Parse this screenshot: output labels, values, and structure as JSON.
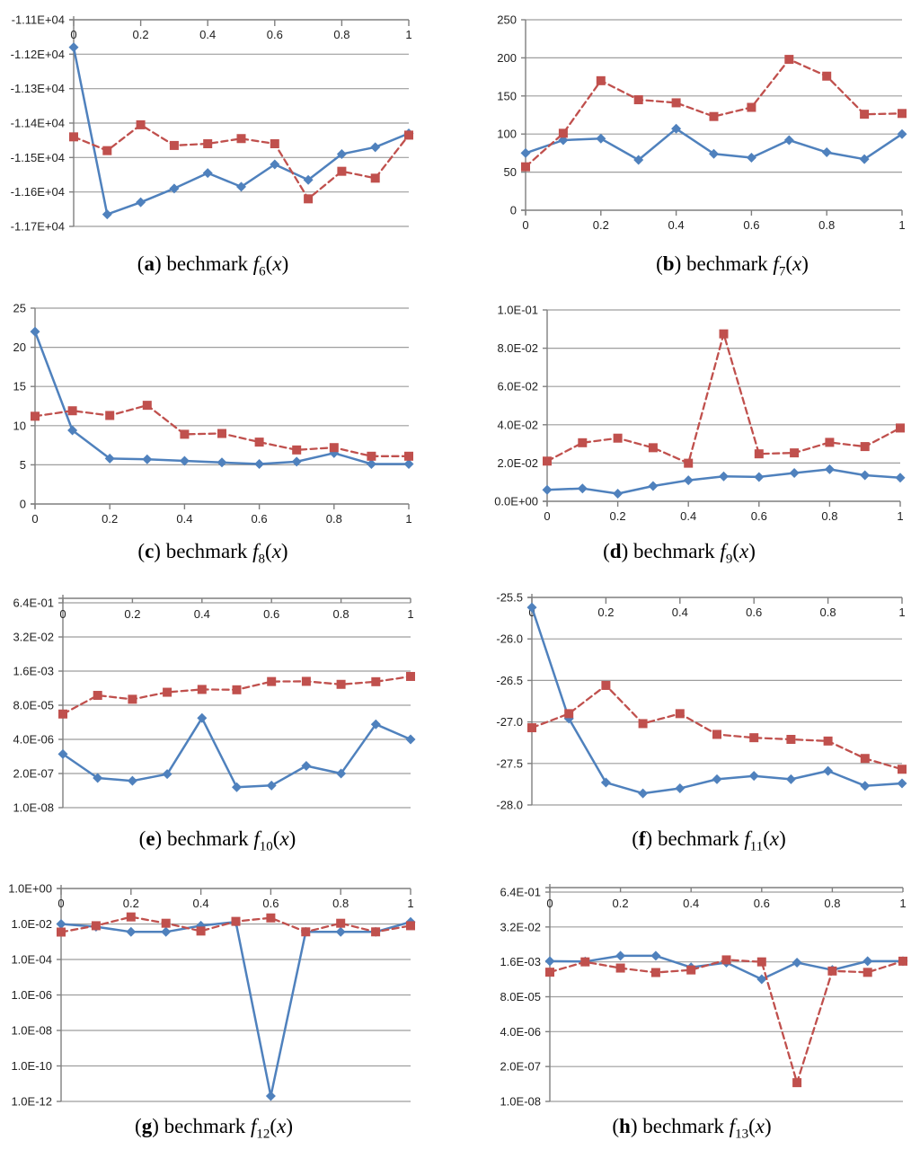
{
  "styles": {
    "blue": "#4F81BD",
    "red": "#C0504D",
    "grid": "#9E9E9E",
    "axis": "#7F7F7F",
    "label_color": "#212121"
  },
  "chart_data": [
    {
      "id": "a",
      "type": "line",
      "caption": {
        "pre": "(",
        "letter": "a",
        "post": ") bechmark ",
        "func": "f",
        "sub": "6",
        "argpre": "(",
        "arg": "x",
        "argpost": ")"
      },
      "x_axis": {
        "position": "top",
        "style": "single",
        "tick_labels": [
          "0",
          "0.2",
          "0.4",
          "0.6",
          "0.8",
          "1"
        ],
        "range": [
          0,
          1
        ]
      },
      "y_axis": {
        "scale": "linear",
        "ticks": [
          {
            "label": "-1.11E+04",
            "v": -11100
          },
          {
            "label": "-1.12E+04",
            "v": -11200
          },
          {
            "label": "-1.13E+04",
            "v": -11300
          },
          {
            "label": "-1.14E+04",
            "v": -11400
          },
          {
            "label": "-1.15E+04",
            "v": -11500
          },
          {
            "label": "-1.16E+04",
            "v": -11600
          },
          {
            "label": "-1.17E+04",
            "v": -11700
          }
        ]
      },
      "x_values": [
        0,
        0.1,
        0.2,
        0.3,
        0.4,
        0.5,
        0.6,
        0.7,
        0.8,
        0.9,
        1
      ],
      "series": [
        {
          "name": "blue-diamond-solid",
          "color_key": "blue",
          "marker": "diamond",
          "line": "solid",
          "values": [
            -11180,
            -11665,
            -11630,
            -11590,
            -11545,
            -11585,
            -11520,
            -11565,
            -11490,
            -11470,
            -11430
          ]
        },
        {
          "name": "red-square-dashed",
          "color_key": "red",
          "marker": "square",
          "line": "dashed",
          "values": [
            -11440,
            -11480,
            -11405,
            -11465,
            -11460,
            -11445,
            -11460,
            -11620,
            -11540,
            -11560,
            -11435
          ]
        }
      ]
    },
    {
      "id": "b",
      "type": "line",
      "caption": {
        "pre": "(",
        "letter": "b",
        "post": ") bechmark ",
        "func": "f",
        "sub": "7",
        "argpre": "(",
        "arg": "x",
        "argpost": ")"
      },
      "x_axis": {
        "position": "bottom",
        "style": "single",
        "tick_labels": [
          "0",
          "0.2",
          "0.4",
          "0.6",
          "0.8",
          "1"
        ],
        "range": [
          0,
          1
        ]
      },
      "y_axis": {
        "scale": "linear",
        "ticks": [
          {
            "label": "250",
            "v": 250
          },
          {
            "label": "200",
            "v": 200
          },
          {
            "label": "150",
            "v": 150
          },
          {
            "label": "100",
            "v": 100
          },
          {
            "label": "50",
            "v": 50
          },
          {
            "label": "0",
            "v": 0
          }
        ]
      },
      "x_values": [
        0,
        0.1,
        0.2,
        0.3,
        0.4,
        0.5,
        0.6,
        0.7,
        0.8,
        0.9,
        1
      ],
      "series": [
        {
          "name": "blue-diamond-solid",
          "color_key": "blue",
          "marker": "diamond",
          "line": "solid",
          "values": [
            75,
            92,
            94,
            66,
            107,
            74,
            69,
            92,
            76,
            67,
            100
          ]
        },
        {
          "name": "red-square-dashed",
          "color_key": "red",
          "marker": "square",
          "line": "dashed",
          "values": [
            57,
            101,
            170,
            145,
            141,
            123,
            135,
            198,
            176,
            126,
            127
          ]
        }
      ]
    },
    {
      "id": "c",
      "type": "line",
      "caption": {
        "pre": "(",
        "letter": "c",
        "post": ") bechmark ",
        "func": "f",
        "sub": "8",
        "argpre": "(",
        "arg": "x",
        "argpost": ")"
      },
      "x_axis": {
        "position": "bottom",
        "style": "single",
        "tick_labels": [
          "0",
          "0.2",
          "0.4",
          "0.6",
          "0.8",
          "1"
        ],
        "range": [
          0,
          1
        ]
      },
      "y_axis": {
        "scale": "linear",
        "ticks": [
          {
            "label": "25",
            "v": 25
          },
          {
            "label": "20",
            "v": 20
          },
          {
            "label": "15",
            "v": 15
          },
          {
            "label": "10",
            "v": 10
          },
          {
            "label": "5",
            "v": 5
          },
          {
            "label": "0",
            "v": 0
          }
        ]
      },
      "x_values": [
        0,
        0.1,
        0.2,
        0.3,
        0.4,
        0.5,
        0.6,
        0.7,
        0.8,
        0.9,
        1
      ],
      "series": [
        {
          "name": "blue-diamond-solid",
          "color_key": "blue",
          "marker": "diamond",
          "line": "solid",
          "values": [
            22,
            9.4,
            5.8,
            5.7,
            5.5,
            5.3,
            5.1,
            5.4,
            6.5,
            5.1,
            5.1
          ]
        },
        {
          "name": "red-square-dashed",
          "color_key": "red",
          "marker": "square",
          "line": "dashed",
          "values": [
            11.2,
            11.9,
            11.3,
            12.6,
            8.9,
            9.0,
            7.9,
            6.9,
            7.2,
            6.1,
            6.1
          ]
        }
      ]
    },
    {
      "id": "d",
      "type": "line",
      "caption": {
        "pre": "(",
        "letter": "d",
        "post": ") bechmark ",
        "func": "f",
        "sub": "9",
        "argpre": "(",
        "arg": "x",
        "argpost": ")"
      },
      "x_axis": {
        "position": "bottom",
        "style": "single",
        "tick_labels": [
          "0",
          "0.2",
          "0.4",
          "0.6",
          "0.8",
          "1"
        ],
        "range": [
          0,
          1
        ]
      },
      "y_axis": {
        "scale": "linear",
        "ticks": [
          {
            "label": "1.0E-01",
            "v": 0.1
          },
          {
            "label": "8.0E-02",
            "v": 0.08
          },
          {
            "label": "6.0E-02",
            "v": 0.06
          },
          {
            "label": "4.0E-02",
            "v": 0.04
          },
          {
            "label": "2.0E-02",
            "v": 0.02
          },
          {
            "label": "0.0E+00",
            "v": 0
          }
        ]
      },
      "x_values": [
        0,
        0.1,
        0.2,
        0.3,
        0.4,
        0.5,
        0.6,
        0.7,
        0.8,
        0.9,
        1
      ],
      "series": [
        {
          "name": "blue-diamond-solid",
          "color_key": "blue",
          "marker": "diamond",
          "line": "solid",
          "values": [
            0.006,
            0.0067,
            0.004,
            0.008,
            0.011,
            0.013,
            0.0127,
            0.0148,
            0.0167,
            0.0136,
            0.0123
          ]
        },
        {
          "name": "red-square-dashed",
          "color_key": "red",
          "marker": "square",
          "line": "dashed",
          "values": [
            0.021,
            0.0306,
            0.033,
            0.028,
            0.0199,
            0.0875,
            0.0248,
            0.0253,
            0.0308,
            0.0286,
            0.0383
          ]
        }
      ]
    },
    {
      "id": "e",
      "type": "line",
      "caption": {
        "pre": "(",
        "letter": "e",
        "post": ") bechmark ",
        "func": "f",
        "sub": "10",
        "argpre": "(",
        "arg": "x",
        "argpost": ")"
      },
      "x_axis": {
        "position": "top",
        "style": "double",
        "tick_labels": [
          "0",
          "0.2",
          "0.4",
          "0.6",
          "0.8",
          "1"
        ],
        "range": [
          0,
          1
        ]
      },
      "y_axis": {
        "scale": "log",
        "ticks": [
          {
            "label": "6.4E-01",
            "v": 0.64
          },
          {
            "label": "3.2E-02",
            "v": 0.032
          },
          {
            "label": "1.6E-03",
            "v": 0.0016
          },
          {
            "label": "8.0E-05",
            "v": 8e-05
          },
          {
            "label": "4.0E-06",
            "v": 4e-06
          },
          {
            "label": "2.0E-07",
            "v": 2e-07
          },
          {
            "label": "1.0E-08",
            "v": 1e-08
          }
        ]
      },
      "x_values": [
        0,
        0.1,
        0.2,
        0.3,
        0.4,
        0.5,
        0.6,
        0.7,
        0.8,
        0.9,
        1
      ],
      "series": [
        {
          "name": "blue-diamond-solid",
          "color_key": "blue",
          "marker": "diamond",
          "line": "solid",
          "values": [
            1.1e-06,
            1.35e-07,
            1.05e-07,
            1.9e-07,
            2.6e-05,
            6e-08,
            7e-08,
            3.9e-07,
            2e-07,
            1.5e-05,
            4e-06
          ]
        },
        {
          "name": "red-square-dashed",
          "color_key": "red",
          "marker": "square",
          "line": "dashed",
          "values": [
            3.7e-05,
            0.00019,
            0.000135,
            0.00025,
            0.00032,
            0.00031,
            0.00064,
            0.00065,
            0.0005,
            0.00063,
            0.001
          ]
        }
      ]
    },
    {
      "id": "f",
      "type": "line",
      "caption": {
        "pre": "(",
        "letter": "f",
        "post": ") bechmark ",
        "func": "f",
        "sub": "11",
        "argpre": "(",
        "arg": "x",
        "argpost": ")"
      },
      "x_axis": {
        "position": "top",
        "style": "single",
        "tick_labels": [
          "0",
          "0.2",
          "0.4",
          "0.6",
          "0.8",
          "1"
        ],
        "range": [
          0,
          1
        ]
      },
      "y_axis": {
        "scale": "linear",
        "ticks": [
          {
            "label": "-25.5",
            "v": -25.5
          },
          {
            "label": "-26.0",
            "v": -26
          },
          {
            "label": "-26.5",
            "v": -26.5
          },
          {
            "label": "-27.0",
            "v": -27
          },
          {
            "label": "-27.5",
            "v": -27.5
          },
          {
            "label": "-28.0",
            "v": -28
          }
        ]
      },
      "x_values": [
        0,
        0.1,
        0.2,
        0.3,
        0.4,
        0.5,
        0.6,
        0.7,
        0.8,
        0.9,
        1
      ],
      "series": [
        {
          "name": "blue-diamond-solid",
          "color_key": "blue",
          "marker": "diamond",
          "line": "solid",
          "values": [
            -25.62,
            -26.96,
            -27.73,
            -27.86,
            -27.8,
            -27.69,
            -27.65,
            -27.69,
            -27.59,
            -27.77,
            -27.74
          ]
        },
        {
          "name": "red-square-dashed",
          "color_key": "red",
          "marker": "square",
          "line": "dashed",
          "values": [
            -27.07,
            -26.9,
            -26.56,
            -27.02,
            -26.9,
            -27.15,
            -27.19,
            -27.21,
            -27.23,
            -27.44,
            -27.57
          ]
        }
      ]
    },
    {
      "id": "g",
      "type": "line",
      "caption": {
        "pre": "(",
        "letter": "g",
        "post": ") bechmark ",
        "func": "f",
        "sub": "12",
        "argpre": "(",
        "arg": "x",
        "argpost": ")"
      },
      "x_axis": {
        "position": "top",
        "style": "single",
        "tick_labels": [
          "0",
          "0.2",
          "0.4",
          "0.6",
          "0.8",
          "1"
        ],
        "range": [
          0,
          1
        ]
      },
      "y_axis": {
        "scale": "log",
        "ticks": [
          {
            "label": "1.0E+00",
            "v": 1
          },
          {
            "label": "1.0E-02",
            "v": 0.01
          },
          {
            "label": "1.0E-04",
            "v": 0.0001
          },
          {
            "label": "1.0E-06",
            "v": 1e-06
          },
          {
            "label": "1.0E-08",
            "v": 1e-08
          },
          {
            "label": "1.0E-10",
            "v": 1e-10
          },
          {
            "label": "1.0E-12",
            "v": 1e-12
          }
        ]
      },
      "x_values": [
        0,
        0.1,
        0.2,
        0.3,
        0.4,
        0.5,
        0.6,
        0.7,
        0.8,
        0.9,
        1
      ],
      "series": [
        {
          "name": "blue-diamond-solid",
          "color_key": "blue",
          "marker": "diamond",
          "line": "solid",
          "values": [
            0.01,
            0.007,
            0.0036,
            0.0036,
            0.008,
            0.013,
            2e-12,
            0.0036,
            0.0036,
            0.0036,
            0.013
          ]
        },
        {
          "name": "red-square-dashed",
          "color_key": "red",
          "marker": "square",
          "line": "dashed",
          "values": [
            0.0035,
            0.008,
            0.025,
            0.011,
            0.004,
            0.014,
            0.022,
            0.0036,
            0.011,
            0.0036,
            0.008
          ]
        }
      ]
    },
    {
      "id": "h",
      "type": "line",
      "caption": {
        "pre": "(",
        "letter": "h",
        "post": ") bechmark ",
        "func": "f",
        "sub": "13",
        "argpre": "(",
        "arg": "x",
        "argpost": ")"
      },
      "x_axis": {
        "position": "top",
        "style": "double",
        "tick_labels": [
          "0",
          "0.2",
          "0.4",
          "0.6",
          "0.8",
          "1"
        ],
        "range": [
          0,
          1
        ]
      },
      "y_axis": {
        "scale": "log",
        "ticks": [
          {
            "label": "6.4E-01",
            "v": 0.64
          },
          {
            "label": "3.2E-02",
            "v": 0.032
          },
          {
            "label": "1.6E-03",
            "v": 0.0016
          },
          {
            "label": "8.0E-05",
            "v": 8e-05
          },
          {
            "label": "4.0E-06",
            "v": 4e-06
          },
          {
            "label": "2.0E-07",
            "v": 2e-07
          },
          {
            "label": "1.0E-08",
            "v": 1e-08
          }
        ]
      },
      "x_values": [
        0,
        0.1,
        0.2,
        0.3,
        0.4,
        0.5,
        0.6,
        0.7,
        0.8,
        0.9,
        1
      ],
      "series": [
        {
          "name": "blue-diamond-solid",
          "color_key": "blue",
          "marker": "diamond",
          "line": "solid",
          "values": [
            0.0017,
            0.00165,
            0.0027,
            0.0027,
            0.001,
            0.0015,
            0.00036,
            0.0015,
            0.0008,
            0.0017,
            0.0017
          ]
        },
        {
          "name": "red-square-dashed",
          "color_key": "red",
          "marker": "square",
          "line": "dashed",
          "values": [
            0.00066,
            0.0016,
            0.00094,
            0.00064,
            0.0008,
            0.0019,
            0.0016,
            5e-08,
            0.00073,
            0.00065,
            0.0017
          ]
        }
      ]
    }
  ]
}
